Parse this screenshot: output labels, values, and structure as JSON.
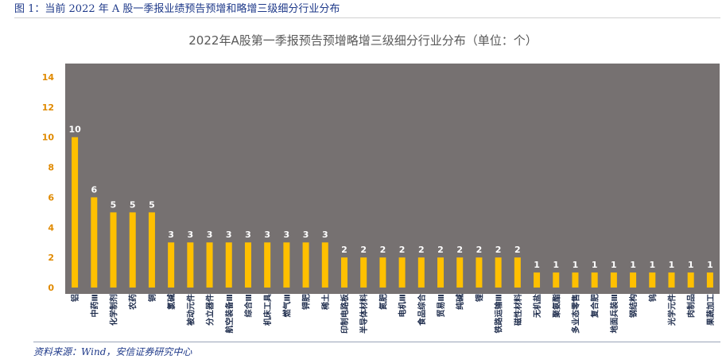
{
  "caption": "图 1：当前 2022 年 A 股一季报业绩预告预增和略增三级细分行业分布",
  "source": "资料来源：Wind，安信证券研究中心",
  "colors": {
    "plot_bg": "#767171",
    "bar": "#ffc000",
    "axis_text": "#e08a00",
    "label": "#ffffff",
    "category_text": "#1f2d4d"
  },
  "chart_data": {
    "type": "bar",
    "title": "2022年A股第一季报预告预增略增三级细分行业分布（单位：个）",
    "xlabel": "",
    "ylabel": "",
    "ylim": [
      0,
      14
    ],
    "yticks": [
      0,
      2,
      4,
      6,
      8,
      10,
      12,
      14
    ],
    "grid": false,
    "legend": "none",
    "categories": [
      "铝",
      "中药Ⅲ",
      "化学制剂",
      "农药",
      "铜",
      "氯碱",
      "被动元件",
      "分立器件",
      "航空装备Ⅲ",
      "综合Ⅲ",
      "机床工具",
      "燃气Ⅲ",
      "钾肥",
      "稀土",
      "印制电路板",
      "半导体材料",
      "氮肥",
      "电机Ⅲ",
      "食品综合",
      "贸易Ⅲ",
      "纯碱",
      "锂",
      "铁路运输Ⅲ",
      "磁性材料",
      "无机盐",
      "聚氨酯",
      "多业态零售",
      "复合肥",
      "地面兵装Ⅲ",
      "钢结构",
      "钨",
      "光学元件",
      "肉制品",
      "果蔬加工"
    ],
    "values": [
      10,
      6,
      5,
      5,
      5,
      3,
      3,
      3,
      3,
      3,
      3,
      3,
      3,
      3,
      2,
      2,
      2,
      2,
      2,
      2,
      2,
      2,
      2,
      2,
      1,
      1,
      1,
      1,
      1,
      1,
      1,
      1,
      1,
      1
    ]
  }
}
